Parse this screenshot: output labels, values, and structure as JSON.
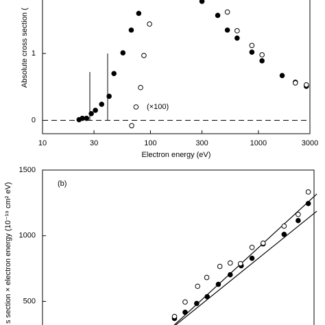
{
  "chart_data": [
    {
      "type": "scatter",
      "xlabel": "Electron energy (eV)",
      "ylabel": "Absolute cross section (",
      "annotation": "(×100)",
      "xscale": "log",
      "xlim": [
        10,
        3000
      ],
      "xticks": [
        10,
        30,
        100,
        300,
        1000,
        3000
      ],
      "ylim": [
        -0.2,
        1.8
      ],
      "yticks": [
        0,
        1
      ],
      "zero_line": "dashed",
      "series": [
        {
          "marker": "filled",
          "color": "#000000",
          "x": [
            21.8,
            23.4,
            25.6,
            28.3,
            30.9,
            35.3,
            41.4,
            45.9,
            55.6,
            66.4,
            77.9,
            300,
            420,
            516,
            635,
            870,
            1080,
            1660,
            2200,
            2780
          ],
          "values": [
            0.01,
            0.03,
            0.03,
            0.1,
            0.15,
            0.24,
            0.36,
            0.7,
            1.01,
            1.35,
            1.6,
            1.78,
            1.57,
            1.35,
            1.23,
            1.02,
            0.89,
            0.67,
            0.57,
            0.51
          ]
        },
        {
          "marker": "open",
          "color": "#000000",
          "x": [
            67,
            73.5,
            81,
            87,
            98,
            516,
            635,
            870,
            1080,
            2200,
            2780
          ],
          "values": [
            -0.08,
            0.2,
            0.49,
            0.97,
            1.44,
            1.62,
            1.34,
            1.12,
            0.98,
            0.56,
            0.53
          ]
        }
      ]
    },
    {
      "type": "scatter",
      "panel": "(b)",
      "ylabel": "s section × electron energy (10⁻¹⁹ cm² eV)",
      "xscale": "log",
      "xlim": [
        10,
        3000
      ],
      "ylim": [
        320,
        1500
      ],
      "yticks": [
        500,
        1000,
        1500
      ],
      "series": [
        {
          "marker": "filled",
          "color": "#000000",
          "x": [
            160,
            200,
            255,
            318,
            402,
            516,
            650,
            815,
            1030,
            1600,
            2150,
            2660
          ],
          "values": [
            370,
            417,
            484,
            536,
            630,
            703,
            771,
            828,
            938,
            1010,
            1115,
            1245
          ]
        },
        {
          "marker": "open",
          "color": "#000000",
          "x": [
            160,
            200,
            260,
            315,
            415,
            516,
            640,
            815,
            1030,
            1600,
            2150,
            2660
          ],
          "values": [
            385,
            495,
            615,
            682,
            766,
            792,
            787,
            911,
            943,
            1073,
            1162,
            1333
          ]
        }
      ],
      "fits": [
        {
          "x": [
            146.5,
            3185
          ],
          "values": [
            292,
            1318
          ]
        },
        {
          "x": [
            157,
            3185
          ],
          "values": [
            307,
            1187
          ]
        }
      ]
    }
  ]
}
